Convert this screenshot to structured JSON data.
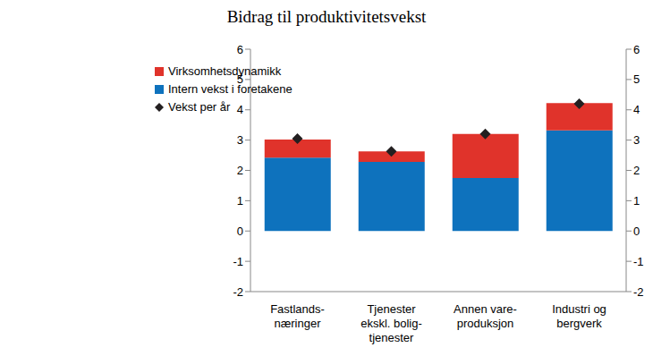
{
  "chart_data": {
    "type": "bar",
    "title": "Bidrag til produktivitetsvekst",
    "categories": [
      "Fastlands-\nnæringer",
      "Tjenester\nekskl. bolig-\ntjenester",
      "Annen vare-\nproduksjon",
      "Industri og\nbergverk"
    ],
    "series": [
      {
        "name": "Virksomhetsdynamikk",
        "color": "#e0332b",
        "type": "bar",
        "values": [
          0.6,
          0.35,
          1.45,
          0.9
        ]
      },
      {
        "name": "Intern vekst i foretakene",
        "color": "#0e72bd",
        "type": "bar",
        "values": [
          2.42,
          2.28,
          1.75,
          3.32
        ]
      },
      {
        "name": "Vekst per år",
        "color": "#231f20",
        "type": "scatter",
        "marker": "diamond",
        "values": [
          3.05,
          2.63,
          3.2,
          4.2
        ]
      }
    ],
    "stacked": true,
    "ylim": [
      -2,
      6
    ],
    "yticks": [
      -2,
      -1,
      0,
      1,
      2,
      3,
      4,
      5,
      6
    ],
    "y2lim": [
      -2,
      6
    ],
    "y2ticks": [
      -2,
      -1,
      0,
      1,
      2,
      3,
      4,
      5,
      6
    ],
    "grid": false,
    "legend": "upper left"
  }
}
